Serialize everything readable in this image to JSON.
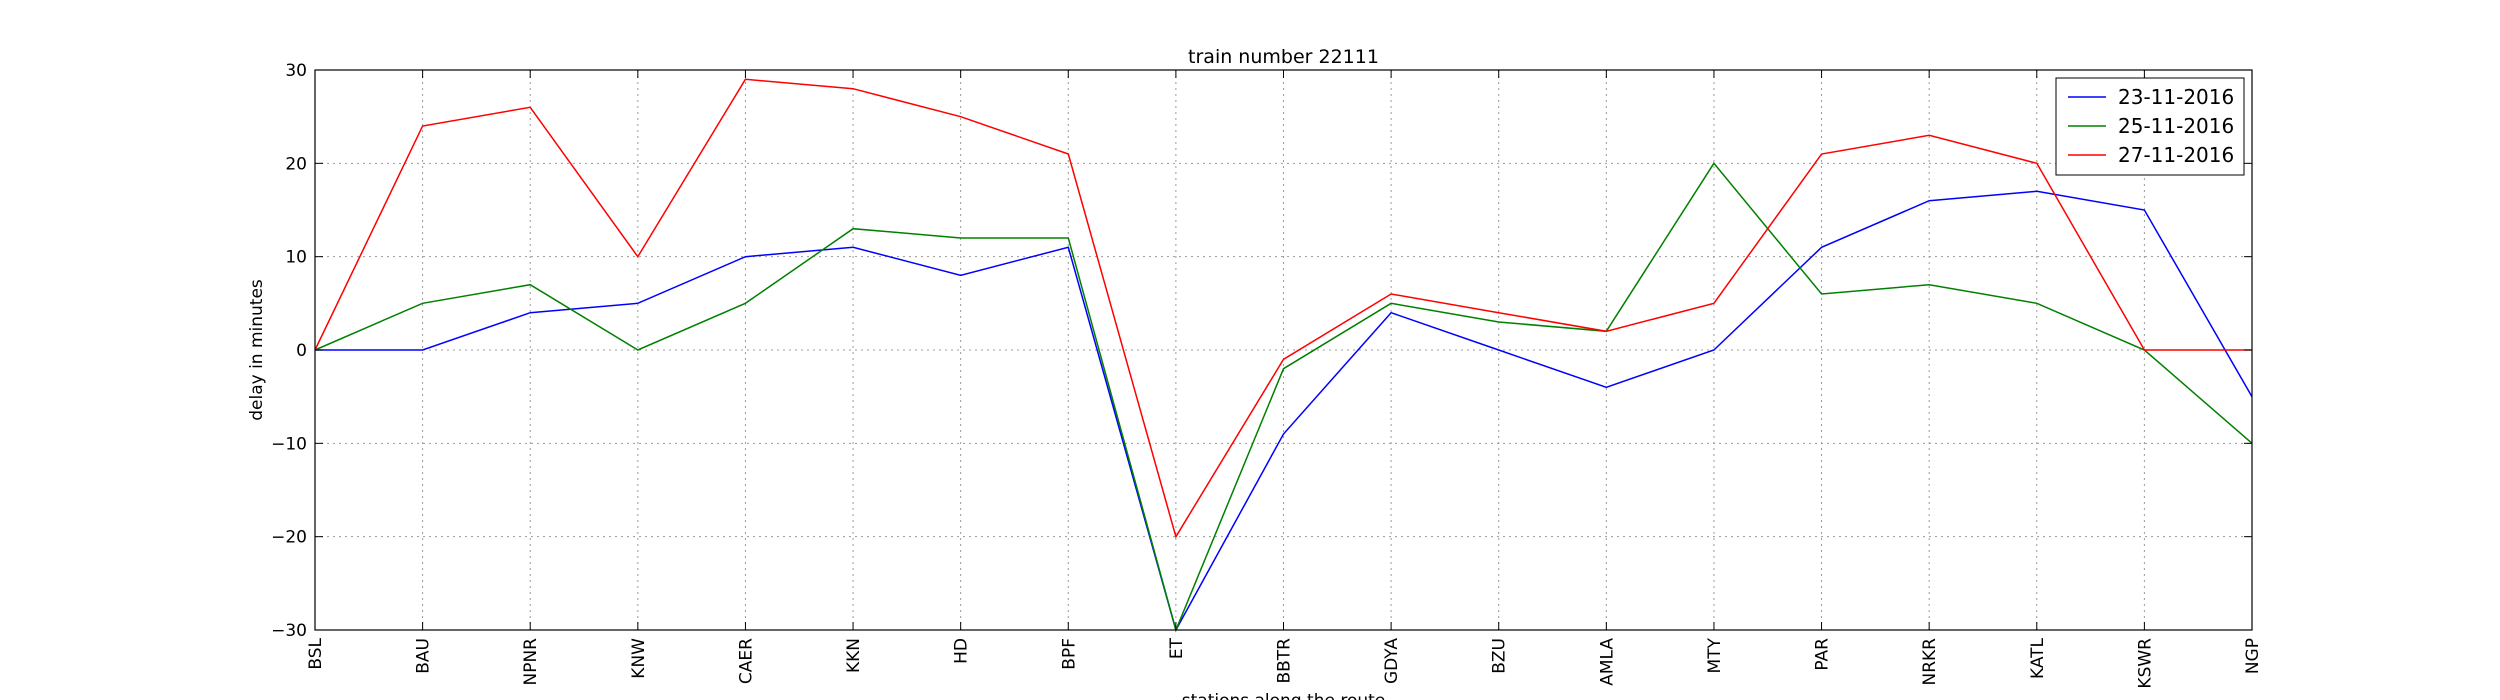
{
  "chart_data": {
    "type": "line",
    "title": "train number 22111",
    "xlabel": "stations along the route",
    "ylabel": "delay in minutes",
    "ylim": [
      -30,
      30
    ],
    "yticks": [
      -30,
      -20,
      -10,
      0,
      10,
      20,
      30
    ],
    "ytick_labels": [
      "−30",
      "−20",
      "−10",
      "0",
      "10",
      "20",
      "30"
    ],
    "grid": true,
    "legend_position": "top-right",
    "categories": [
      "BSL",
      "BAU",
      "NPNR",
      "KNW",
      "CAER",
      "KKN",
      "HD",
      "BPF",
      "ET",
      "BBTR",
      "GDYA",
      "BZU",
      "AMLA",
      "MTY",
      "PAR",
      "NRKR",
      "KATL",
      "KSWR",
      "NGP"
    ],
    "series": [
      {
        "name": "23-11-2016",
        "color": "#0000ff",
        "values": [
          0,
          0,
          4,
          5,
          10,
          11,
          8,
          11,
          -30,
          -9,
          4,
          0,
          -4,
          0,
          11,
          16,
          17,
          15,
          -5
        ]
      },
      {
        "name": "25-11-2016",
        "color": "#008000",
        "values": [
          0,
          5,
          7,
          0,
          5,
          13,
          12,
          12,
          -30,
          -2,
          5,
          3,
          2,
          20,
          6,
          7,
          5,
          0,
          -10
        ]
      },
      {
        "name": "27-11-2016",
        "color": "#ff0000",
        "values": [
          0,
          24,
          26,
          10,
          29,
          28,
          25,
          21,
          -20,
          -1,
          6,
          4,
          2,
          5,
          21,
          23,
          20,
          0,
          0
        ]
      }
    ]
  }
}
